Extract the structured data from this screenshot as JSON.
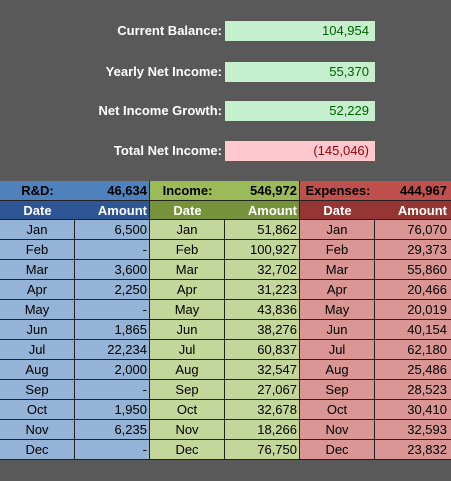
{
  "summary": {
    "current_balance": {
      "label": "Current Balance:",
      "value": "104,954"
    },
    "yearly_net_income": {
      "label": "Yearly Net Income:",
      "value": "55,370"
    },
    "net_income_growth": {
      "label": "Net Income Growth:",
      "value": "52,229"
    },
    "total_net_income": {
      "label": "Total Net Income:",
      "value": "(145,046)"
    }
  },
  "colors": {
    "background": "#595959",
    "rd_header": "#4f81bd",
    "income_header": "#9bbb59",
    "expenses_header": "#c0504d",
    "positive_cell": "#c6efce",
    "negative_cell": "#ffc7ce"
  },
  "rd": {
    "label": "R&D:",
    "total": "46,634",
    "col_date": "Date",
    "col_amount": "Amount",
    "rows": [
      {
        "date": "Jan",
        "amount": "6,500"
      },
      {
        "date": "Feb",
        "amount": "-"
      },
      {
        "date": "Mar",
        "amount": "3,600"
      },
      {
        "date": "Apr",
        "amount": "2,250"
      },
      {
        "date": "May",
        "amount": "-"
      },
      {
        "date": "Jun",
        "amount": "1,865"
      },
      {
        "date": "Jul",
        "amount": "22,234"
      },
      {
        "date": "Aug",
        "amount": "2,000"
      },
      {
        "date": "Sep",
        "amount": "-"
      },
      {
        "date": "Oct",
        "amount": "1,950"
      },
      {
        "date": "Nov",
        "amount": "6,235"
      },
      {
        "date": "Dec",
        "amount": "-"
      }
    ]
  },
  "income": {
    "label": "Income:",
    "total": "546,972",
    "col_date": "Date",
    "col_amount": "Amount",
    "rows": [
      {
        "date": "Jan",
        "amount": "51,862"
      },
      {
        "date": "Feb",
        "amount": "100,927"
      },
      {
        "date": "Mar",
        "amount": "32,702"
      },
      {
        "date": "Apr",
        "amount": "31,223"
      },
      {
        "date": "May",
        "amount": "43,836"
      },
      {
        "date": "Jun",
        "amount": "38,276"
      },
      {
        "date": "Jul",
        "amount": "60,837"
      },
      {
        "date": "Aug",
        "amount": "32,547"
      },
      {
        "date": "Sep",
        "amount": "27,067"
      },
      {
        "date": "Oct",
        "amount": "32,678"
      },
      {
        "date": "Nov",
        "amount": "18,266"
      },
      {
        "date": "Dec",
        "amount": "76,750"
      }
    ]
  },
  "expenses": {
    "label": "Expenses:",
    "total": "444,967",
    "col_date": "Date",
    "col_amount": "Amount",
    "rows": [
      {
        "date": "Jan",
        "amount": "76,070"
      },
      {
        "date": "Feb",
        "amount": "29,373"
      },
      {
        "date": "Mar",
        "amount": "55,860"
      },
      {
        "date": "Apr",
        "amount": "20,466"
      },
      {
        "date": "May",
        "amount": "20,019"
      },
      {
        "date": "Jun",
        "amount": "40,154"
      },
      {
        "date": "Jul",
        "amount": "62,180"
      },
      {
        "date": "Aug",
        "amount": "25,486"
      },
      {
        "date": "Sep",
        "amount": "28,523"
      },
      {
        "date": "Oct",
        "amount": "30,410"
      },
      {
        "date": "Nov",
        "amount": "32,593"
      },
      {
        "date": "Dec",
        "amount": "23,832"
      }
    ]
  }
}
